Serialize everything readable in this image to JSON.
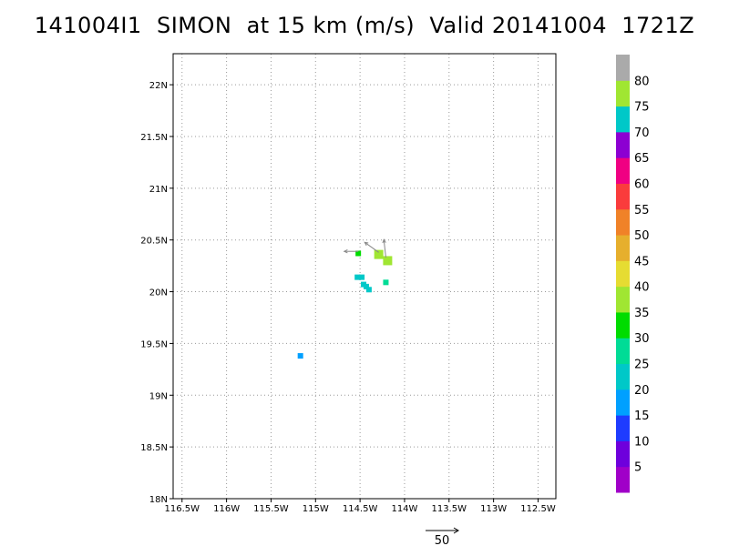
{
  "title": "141004I1  SIMON  at 15 km (m/s)  Valid 20141004  1721Z",
  "chart_data": {
    "type": "scatter",
    "title": "141004I1  SIMON  at 15 km (m/s)  Valid 20141004  1721Z",
    "xlabel": "",
    "ylabel": "",
    "xlim": [
      -116.6,
      -112.3
    ],
    "ylim": [
      18.0,
      22.3
    ],
    "grid": true,
    "x_ticks": [
      -116.5,
      -116,
      -115.5,
      -115,
      -114.5,
      -114,
      -113.5,
      -113,
      -112.5
    ],
    "x_tick_labels": [
      "116.5W",
      "116W",
      "115.5W",
      "115W",
      "114.5W",
      "114W",
      "113.5W",
      "113W",
      "112.5W"
    ],
    "y_ticks": [
      18,
      18.5,
      19,
      19.5,
      20,
      20.5,
      21,
      21.5,
      22
    ],
    "y_tick_labels": [
      "18N",
      "18.5N",
      "19N",
      "19.5N",
      "20N",
      "20.5N",
      "21N",
      "21.5N",
      "22N"
    ],
    "points": [
      {
        "lon": -115.17,
        "lat": 19.38,
        "speed": 15,
        "size": "small"
      },
      {
        "lon": -114.53,
        "lat": 20.14,
        "speed": 20,
        "size": "small"
      },
      {
        "lon": -114.48,
        "lat": 20.14,
        "speed": 20,
        "size": "small"
      },
      {
        "lon": -114.46,
        "lat": 20.07,
        "speed": 20,
        "size": "small"
      },
      {
        "lon": -114.43,
        "lat": 20.05,
        "speed": 20,
        "size": "small"
      },
      {
        "lon": -114.4,
        "lat": 20.02,
        "speed": 20,
        "size": "small"
      },
      {
        "lon": -114.52,
        "lat": 20.37,
        "speed": 30,
        "size": "small"
      },
      {
        "lon": -114.21,
        "lat": 20.09,
        "speed": 25,
        "size": "small"
      },
      {
        "lon": -114.29,
        "lat": 20.36,
        "speed": 35,
        "size": "large"
      },
      {
        "lon": -114.19,
        "lat": 20.3,
        "speed": 35,
        "size": "large"
      }
    ],
    "wind_vectors": [
      {
        "lon": -114.52,
        "lat": 20.39,
        "u": -7,
        "v": 0
      },
      {
        "lon": -114.29,
        "lat": 20.38,
        "u": -7,
        "v": 5
      },
      {
        "lon": -114.21,
        "lat": 20.33,
        "u": -1,
        "v": 9
      }
    ],
    "reference_vector": {
      "value": 50,
      "label": "50"
    },
    "colorbar": {
      "labels": [
        "5",
        "10",
        "15",
        "20",
        "25",
        "30",
        "35",
        "40",
        "45",
        "50",
        "55",
        "60",
        "65",
        "70",
        "75",
        "80"
      ],
      "colors": [
        "#a000c8",
        "#6e00dc",
        "#1e3cff",
        "#00a0ff",
        "#00c8c8",
        "#00dc96",
        "#00dc00",
        "#a0e632",
        "#e6dc32",
        "#e6af2d",
        "#f08228",
        "#fa3c3c",
        "#f00082",
        "#8c00d2",
        "#00c8c8",
        "#a0e632",
        "#aaaaaa"
      ]
    }
  }
}
